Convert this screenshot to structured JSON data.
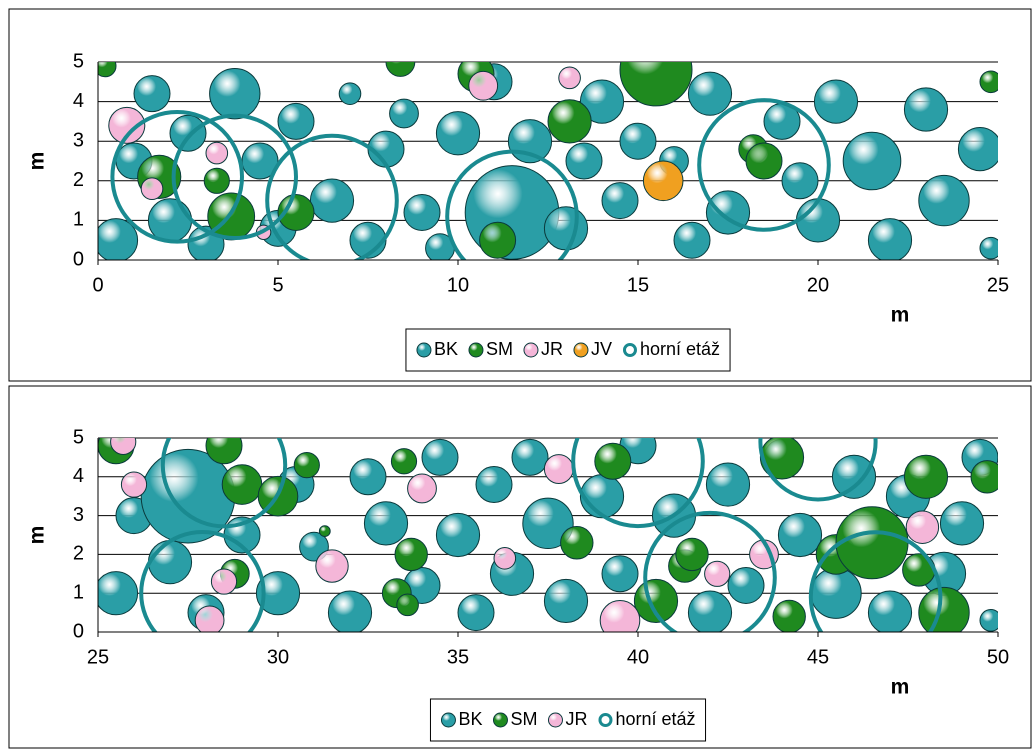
{
  "chart_data": [
    {
      "type": "bubble",
      "x_label": "m",
      "y_label": "m",
      "xlim": [
        0,
        25
      ],
      "ylim": [
        0,
        5
      ],
      "xticks": [
        0,
        5,
        10,
        15,
        20,
        25
      ],
      "yticks": [
        0,
        1,
        2,
        3,
        4,
        5
      ],
      "series": [
        {
          "name": "BK",
          "color": "#2a9ea6",
          "x": [
            0.5,
            1,
            1.5,
            2,
            2.5,
            3,
            3.8,
            4.5,
            5,
            5.5,
            6.5,
            7,
            7.5,
            8,
            8.5,
            9,
            9.5,
            10,
            11,
            11.5,
            12,
            13,
            13.5,
            14,
            14.5,
            15,
            16.5,
            17,
            17.5,
            19,
            20,
            20.5,
            21.5,
            22,
            23,
            23.5,
            24.5,
            24.8,
            19.5,
            16
          ],
          "y": [
            0.5,
            2.5,
            4.2,
            1,
            3.2,
            0.4,
            4.2,
            2.5,
            0.8,
            3.5,
            1.5,
            4.2,
            0.5,
            2.8,
            3.7,
            1.2,
            0.3,
            3.2,
            4.5,
            1.2,
            3,
            0.8,
            2.5,
            4,
            1.5,
            3,
            0.5,
            4.2,
            1.2,
            3.5,
            1,
            4,
            2.5,
            0.5,
            3.8,
            1.5,
            2.8,
            0.3,
            2,
            2.5
          ],
          "sizes": [
            0.6,
            0.5,
            0.5,
            0.6,
            0.5,
            0.5,
            0.7,
            0.5,
            0.5,
            0.5,
            0.6,
            0.3,
            0.5,
            0.5,
            0.4,
            0.5,
            0.4,
            0.6,
            0.5,
            1.3,
            0.6,
            0.6,
            0.5,
            0.6,
            0.5,
            0.5,
            0.5,
            0.6,
            0.6,
            0.5,
            0.6,
            0.6,
            0.8,
            0.6,
            0.6,
            0.7,
            0.6,
            0.3,
            0.5,
            0.4
          ]
        },
        {
          "name": "SM",
          "color": "#1f8a1f",
          "x": [
            0.2,
            1.7,
            3.3,
            3.7,
            5.5,
            8.4,
            10.5,
            11.1,
            13.1,
            15.5,
            18.2,
            18.5,
            24.8
          ],
          "y": [
            4.9,
            2.1,
            2,
            1.1,
            1.2,
            5,
            4.7,
            0.5,
            3.5,
            4.8,
            2.8,
            2.5,
            4.5
          ],
          "sizes": [
            0.3,
            0.6,
            0.35,
            0.65,
            0.5,
            0.4,
            0.5,
            0.5,
            0.6,
            1,
            0.4,
            0.5,
            0.3
          ]
        },
        {
          "name": "JR",
          "color": "#f4b6d8",
          "x": [
            0.8,
            1.5,
            3.3,
            10.7,
            13.1,
            4.6
          ],
          "y": [
            3.4,
            1.8,
            2.7,
            4.4,
            4.6,
            0.7
          ],
          "sizes": [
            0.5,
            0.3,
            0.3,
            0.4,
            0.3,
            0.2
          ]
        },
        {
          "name": "JV",
          "color": "#f0a020",
          "x": [
            15.7
          ],
          "y": [
            2
          ],
          "sizes": [
            0.55
          ]
        },
        {
          "name": "horní etáž",
          "color": "#1a8a90",
          "hollow": true,
          "x": [
            2.2,
            3.8,
            6.5,
            11.5,
            18.5
          ],
          "y": [
            2.1,
            2.1,
            1.5,
            1.1,
            2.4
          ],
          "sizes": [
            1.8,
            1.7,
            1.8,
            1.8,
            1.8
          ]
        }
      ]
    },
    {
      "type": "bubble",
      "x_label": "m",
      "y_label": "m",
      "xlim": [
        25,
        50
      ],
      "ylim": [
        0,
        5
      ],
      "xticks": [
        25,
        30,
        35,
        40,
        45,
        50
      ],
      "yticks": [
        0,
        1,
        2,
        3,
        4,
        5
      ],
      "series": [
        {
          "name": "BK",
          "color": "#2a9ea6",
          "x": [
            25.5,
            26,
            27,
            27.5,
            28,
            29,
            30,
            30.5,
            31,
            32,
            32.5,
            33,
            34,
            34.5,
            35,
            35.5,
            36,
            36.5,
            37,
            37.5,
            38,
            39,
            39.5,
            40,
            41,
            42,
            42.5,
            43,
            44,
            44.5,
            45.5,
            46,
            47,
            47.5,
            48.5,
            49,
            49.5,
            49.8
          ],
          "y": [
            1,
            3,
            1.8,
            3.5,
            0.5,
            2.5,
            1,
            3.8,
            2.2,
            0.5,
            4,
            2.8,
            1.2,
            4.5,
            2.5,
            0.5,
            3.8,
            1.5,
            4.5,
            2.8,
            0.8,
            3.5,
            1.5,
            4.8,
            3,
            0.5,
            3.8,
            1.2,
            4.5,
            2.5,
            1,
            4,
            0.5,
            3.5,
            1.5,
            2.8,
            4.5,
            0.3
          ],
          "sizes": [
            0.6,
            0.5,
            0.6,
            1.3,
            0.5,
            0.5,
            0.6,
            0.5,
            0.4,
            0.6,
            0.5,
            0.6,
            0.5,
            0.5,
            0.6,
            0.5,
            0.5,
            0.6,
            0.5,
            0.7,
            0.6,
            0.6,
            0.5,
            0.5,
            0.6,
            0.6,
            0.6,
            0.5,
            0.5,
            0.6,
            0.7,
            0.6,
            0.6,
            0.6,
            0.6,
            0.6,
            0.5,
            0.3
          ]
        },
        {
          "name": "SM",
          "color": "#1f8a1f",
          "x": [
            25.5,
            28.5,
            29,
            30,
            30.8,
            28.8,
            31.3,
            33.5,
            33.7,
            33.3,
            33.6,
            38.3,
            39.3,
            40.5,
            41.3,
            41.5,
            44,
            44.2,
            45.5,
            46.5,
            48,
            47.8,
            49.7,
            48.5
          ],
          "y": [
            4.8,
            4.8,
            3.8,
            3.5,
            4.3,
            1.5,
            2.6,
            4.4,
            2,
            1,
            0.7,
            2.3,
            4.4,
            0.8,
            1.7,
            2,
            4.5,
            0.4,
            2,
            2.3,
            4,
            1.6,
            4,
            0.5
          ],
          "sizes": [
            0.5,
            0.5,
            0.55,
            0.55,
            0.35,
            0.4,
            0.15,
            0.35,
            0.45,
            0.4,
            0.3,
            0.45,
            0.5,
            0.6,
            0.45,
            0.45,
            0.6,
            0.45,
            0.55,
            1,
            0.6,
            0.45,
            0.45,
            0.7
          ]
        },
        {
          "name": "JR",
          "color": "#f4b6d8",
          "x": [
            25.7,
            26,
            28.5,
            28.1,
            31.5,
            34,
            36.3,
            37.8,
            39.5,
            42.2,
            43.5,
            47.9
          ],
          "y": [
            4.9,
            3.8,
            1.3,
            0.3,
            1.7,
            3.7,
            1.9,
            4.2,
            0.3,
            1.5,
            2,
            2.7
          ],
          "sizes": [
            0.35,
            0.35,
            0.35,
            0.4,
            0.45,
            0.4,
            0.3,
            0.4,
            0.55,
            0.35,
            0.4,
            0.45
          ]
        },
        {
          "name": "horní etáž",
          "color": "#1a8a90",
          "hollow": true,
          "x": [
            28.5,
            27.9,
            40,
            42,
            45,
            46.6
          ],
          "y": [
            4.3,
            1,
            4.4,
            1.4,
            4.9,
            0.9
          ],
          "sizes": [
            1.7,
            1.7,
            1.8,
            1.8,
            1.6,
            1.8
          ]
        }
      ]
    }
  ]
}
